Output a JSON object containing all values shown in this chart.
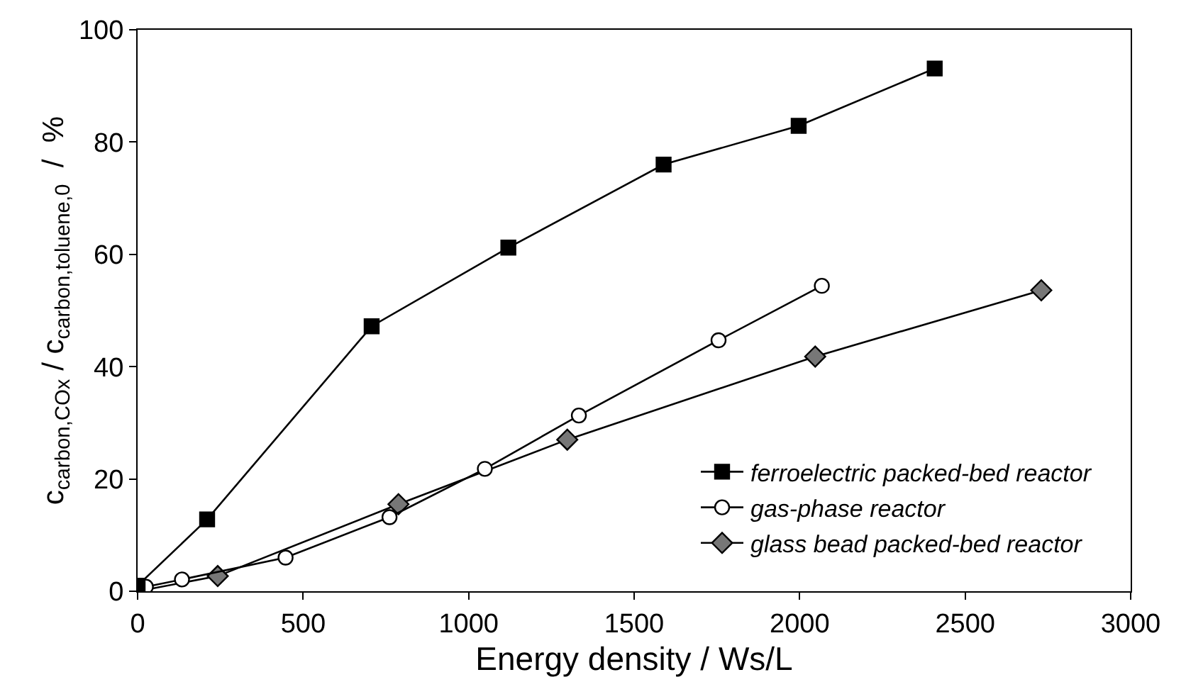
{
  "chart_data": {
    "type": "line",
    "xlabel": "Energy density / Ws/L",
    "ylabel": "c$_{carbon,COx}$ / c$_{carbon,toluene,0}$  /  %",
    "xlim": [
      0,
      3000
    ],
    "xticks": [
      0,
      500,
      1000,
      1500,
      2000,
      2500,
      3000
    ],
    "ylim": [
      0,
      100
    ],
    "yticks": [
      0,
      20,
      40,
      60,
      80,
      100
    ],
    "legend": "bottom right",
    "series": [
      {
        "name": "ferroelectric packed-bed reactor",
        "color": "#000000",
        "marker": "square",
        "x": [
          0,
          210,
          707,
          1120,
          1589,
          1997,
          2408
        ],
        "values": [
          1.0,
          12.8,
          47.2,
          61.2,
          76.0,
          82.9,
          93.1
        ]
      },
      {
        "name": "gas-phase reactor",
        "color": "#ffffff",
        "marker": "circle",
        "x": [
          25,
          134,
          447,
          761,
          1049,
          1333,
          1755,
          2067
        ],
        "values": [
          0.8,
          2.1,
          6.0,
          13.2,
          21.8,
          31.3,
          44.7,
          54.4
        ]
      },
      {
        "name": "glass bead packed-bed reactor",
        "color": "#777777",
        "marker": "diamond",
        "x": [
          0,
          242,
          788,
          1298,
          2047,
          2730
        ],
        "values": [
          0.0,
          2.7,
          15.5,
          27.0,
          41.8,
          53.6
        ]
      }
    ]
  }
}
